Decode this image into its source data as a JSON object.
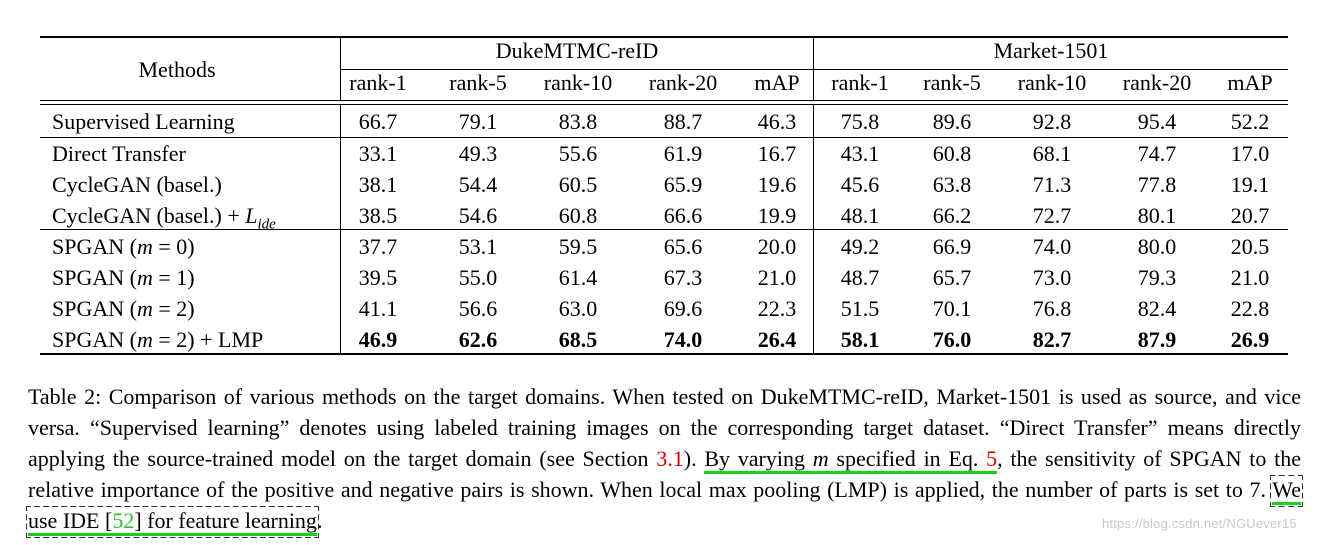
{
  "table": {
    "methods_header": "Methods",
    "groups": [
      "DukeMTMC-reID",
      "Market-1501"
    ],
    "metrics": [
      "rank-1",
      "rank-5",
      "rank-10",
      "rank-20",
      "mAP"
    ],
    "rows": [
      {
        "method": "Supervised Learning",
        "duke": [
          "66.7",
          "79.1",
          "83.8",
          "88.7",
          "46.3"
        ],
        "market": [
          "75.8",
          "89.6",
          "92.8",
          "95.4",
          "52.2"
        ]
      },
      {
        "method": "Direct Transfer",
        "duke": [
          "33.1",
          "49.3",
          "55.6",
          "61.9",
          "16.7"
        ],
        "market": [
          "43.1",
          "60.8",
          "68.1",
          "74.7",
          "17.0"
        ]
      },
      {
        "method": "CycleGAN (basel.)",
        "duke": [
          "38.1",
          "54.4",
          "60.5",
          "65.9",
          "19.6"
        ],
        "market": [
          "45.6",
          "63.8",
          "71.3",
          "77.8",
          "19.1"
        ]
      },
      {
        "method": "CycleGAN (basel.) + ",
        "method_math": "L",
        "method_sub": "ide",
        "duke": [
          "38.5",
          "54.6",
          "60.8",
          "66.6",
          "19.9"
        ],
        "market": [
          "48.1",
          "66.2",
          "72.7",
          "80.1",
          "20.7"
        ]
      },
      {
        "method": "SPGAN (",
        "method_math": "m",
        "method_tail": " = 0)",
        "duke": [
          "37.7",
          "53.1",
          "59.5",
          "65.6",
          "20.0"
        ],
        "market": [
          "49.2",
          "66.9",
          "74.0",
          "80.0",
          "20.5"
        ]
      },
      {
        "method": "SPGAN (",
        "method_math": "m",
        "method_tail": " = 1)",
        "duke": [
          "39.5",
          "55.0",
          "61.4",
          "67.3",
          "21.0"
        ],
        "market": [
          "48.7",
          "65.7",
          "73.0",
          "79.3",
          "21.0"
        ]
      },
      {
        "method": "SPGAN (",
        "method_math": "m",
        "method_tail": " = 2)",
        "duke": [
          "41.1",
          "56.6",
          "63.0",
          "69.6",
          "22.3"
        ],
        "market": [
          "51.5",
          "70.1",
          "76.8",
          "82.4",
          "22.8"
        ]
      },
      {
        "method": "SPGAN (",
        "method_math": "m",
        "method_tail": " = 2) + LMP",
        "duke": [
          "46.9",
          "62.6",
          "68.5",
          "74.0",
          "26.4"
        ],
        "market": [
          "58.1",
          "76.0",
          "82.7",
          "87.9",
          "26.9"
        ]
      }
    ]
  },
  "caption": {
    "p1": "Table 2: Comparison of various methods on the target domains. When tested on DukeMTMC-reID, Market-1501 is used as source, and vice versa. “Supervised learning” denotes using labeled training images on the corresponding target dataset. “Direct Transfer” means directly applying the source-trained model on the target domain (see Section ",
    "ref1": "3.1",
    "p2": "). ",
    "hl1": "By varying ",
    "hl1_math": "m",
    "hl1b": " specified in Eq. ",
    "ref2": "5",
    "p3": ", the sensitivity of SPGAN to the relative importance of the positive and negative pairs is shown. When local max pooling (LMP) is applied, the number of parts is set to 7. ",
    "hl2": "We use IDE [",
    "ref3": "52",
    "hl2b": "] for feature learning",
    "p4": "."
  },
  "watermark": "https://blog.csdn.net/NGUever15"
}
